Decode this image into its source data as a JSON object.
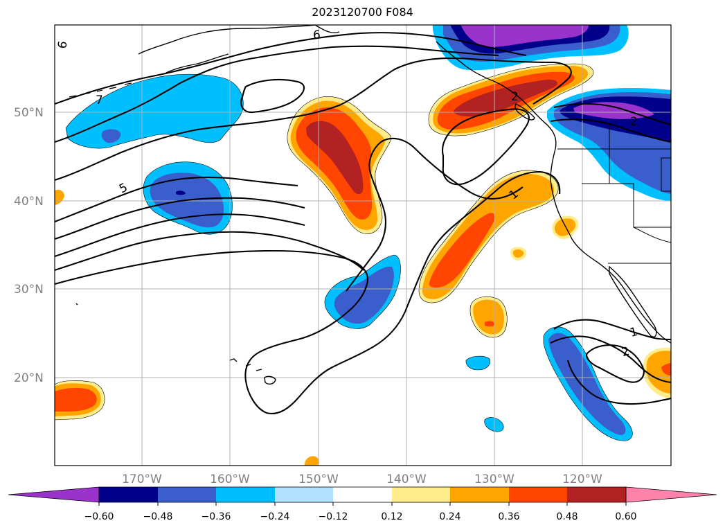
{
  "title": "2023120700 F084",
  "colors": {
    "neg_060": "#9933cc",
    "neg_048": "#00008b",
    "neg_036": "#3a5fcd",
    "neg_024": "#00bfff",
    "neg_012": "#b0e2ff",
    "zero": "#ffffff",
    "pos_012": "#ffec8b",
    "pos_024": "#ffa500",
    "pos_036": "#ff4500",
    "pos_048": "#b22222",
    "pos_060": "#ff82ab",
    "grid": "#b0b0b0",
    "coast": "#000000",
    "contour": "#000000"
  },
  "latitude_labels": [
    "50°N",
    "40°N",
    "30°N",
    "20°N"
  ],
  "longitude_labels": [
    "170°W",
    "160°W",
    "150°W",
    "140°W",
    "130°W",
    "120°W"
  ],
  "contour_labels": [
    "6",
    "6",
    "7",
    "5",
    "1",
    "2",
    "1",
    "2",
    "2"
  ],
  "colorbar": {
    "ticks": [
      "−0.60",
      "−0.48",
      "−0.36",
      "−0.24",
      "−0.12",
      "0.12",
      "0.24",
      "0.36",
      "0.48",
      "0.60"
    ],
    "extend": "both"
  }
}
